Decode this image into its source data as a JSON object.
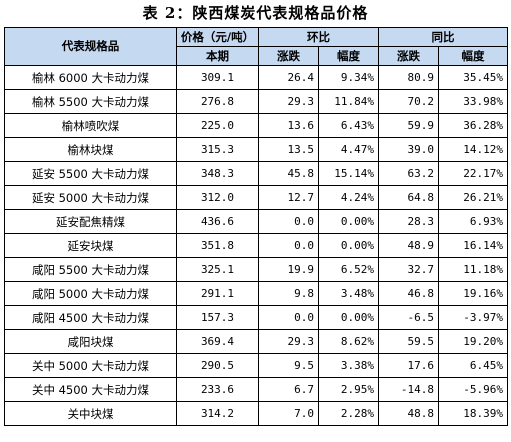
{
  "title": "表 2：陕西煤炭代表规格品价格",
  "header": {
    "product": "代表规格品",
    "price": "价格（元/吨）",
    "current": "本期",
    "mom": "环比",
    "yoy": "同比",
    "change": "涨跌",
    "pct": "幅度"
  },
  "rows": [
    {
      "name": "榆林 6000 大卡动力煤",
      "price": "309.1",
      "mom_change": "26.4",
      "mom_pct": "9.34%",
      "yoy_change": "80.9",
      "yoy_pct": "35.45%"
    },
    {
      "name": "榆林 5500 大卡动力煤",
      "price": "276.8",
      "mom_change": "29.3",
      "mom_pct": "11.84%",
      "yoy_change": "70.2",
      "yoy_pct": "33.98%"
    },
    {
      "name": "榆林喷吹煤",
      "price": "225.0",
      "mom_change": "13.6",
      "mom_pct": "6.43%",
      "yoy_change": "59.9",
      "yoy_pct": "36.28%"
    },
    {
      "name": "榆林块煤",
      "price": "315.3",
      "mom_change": "13.5",
      "mom_pct": "4.47%",
      "yoy_change": "39.0",
      "yoy_pct": "14.12%"
    },
    {
      "name": "延安 5500 大卡动力煤",
      "price": "348.3",
      "mom_change": "45.8",
      "mom_pct": "15.14%",
      "yoy_change": "63.2",
      "yoy_pct": "22.17%"
    },
    {
      "name": "延安 5000 大卡动力煤",
      "price": "312.0",
      "mom_change": "12.7",
      "mom_pct": "4.24%",
      "yoy_change": "64.8",
      "yoy_pct": "26.21%"
    },
    {
      "name": "延安配焦精煤",
      "price": "436.6",
      "mom_change": "0.0",
      "mom_pct": "0.00%",
      "yoy_change": "28.3",
      "yoy_pct": "6.93%"
    },
    {
      "name": "延安块煤",
      "price": "351.8",
      "mom_change": "0.0",
      "mom_pct": "0.00%",
      "yoy_change": "48.9",
      "yoy_pct": "16.14%"
    },
    {
      "name": "咸阳 5500 大卡动力煤",
      "price": "325.1",
      "mom_change": "19.9",
      "mom_pct": "6.52%",
      "yoy_change": "32.7",
      "yoy_pct": "11.18%"
    },
    {
      "name": "咸阳 5000 大卡动力煤",
      "price": "291.1",
      "mom_change": "9.8",
      "mom_pct": "3.48%",
      "yoy_change": "46.8",
      "yoy_pct": "19.16%"
    },
    {
      "name": "咸阳 4500 大卡动力煤",
      "price": "157.3",
      "mom_change": "0.0",
      "mom_pct": "0.00%",
      "yoy_change": "-6.5",
      "yoy_pct": "-3.97%"
    },
    {
      "name": "咸阳块煤",
      "price": "369.4",
      "mom_change": "29.3",
      "mom_pct": "8.62%",
      "yoy_change": "59.5",
      "yoy_pct": "19.20%"
    },
    {
      "name": "关中 5000 大卡动力煤",
      "price": "290.5",
      "mom_change": "9.5",
      "mom_pct": "3.38%",
      "yoy_change": "17.6",
      "yoy_pct": "6.45%"
    },
    {
      "name": "关中 4500 大卡动力煤",
      "price": "233.6",
      "mom_change": "6.7",
      "mom_pct": "2.95%",
      "yoy_change": "-14.8",
      "yoy_pct": "-5.96%"
    },
    {
      "name": "关中块煤",
      "price": "314.2",
      "mom_change": "7.0",
      "mom_pct": "2.28%",
      "yoy_change": "48.8",
      "yoy_pct": "18.39%"
    }
  ],
  "colors": {
    "header_bg": "#c5d9f1",
    "border": "#000000"
  }
}
